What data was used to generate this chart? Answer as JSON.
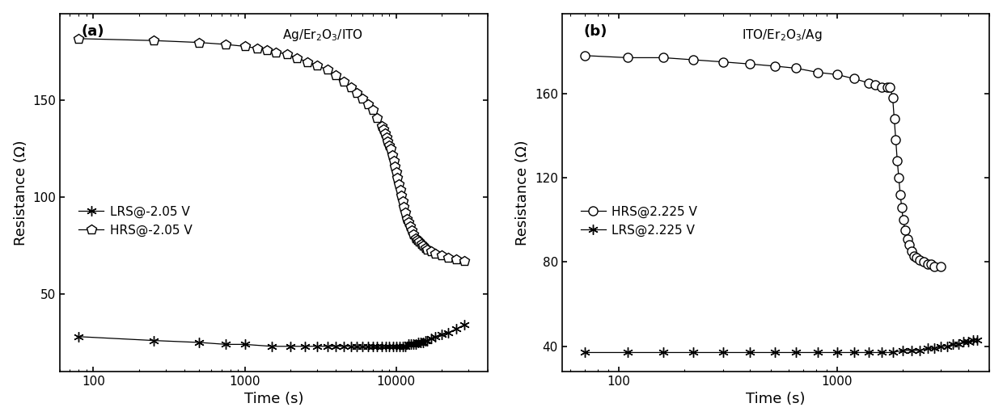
{
  "panel_a": {
    "xlabel": "Time (s)",
    "ylabel": "Resistance (Ω)",
    "label": "(a)",
    "title_text": "Ag/Er$_2$O$_3$/ITO",
    "xlim": [
      60,
      40000
    ],
    "ylim": [
      10,
      195
    ],
    "yticks": [
      50,
      100,
      150
    ],
    "xticks": [
      100,
      1000,
      10000
    ],
    "xtick_labels": [
      "100",
      "1000",
      "10000"
    ],
    "legend": [
      "LRS@-2.05 V",
      "HRS@-2.05 V"
    ],
    "HRS_time": [
      80,
      250,
      500,
      750,
      1000,
      1200,
      1400,
      1600,
      1900,
      2200,
      2600,
      3000,
      3500,
      4000,
      4500,
      5000,
      5500,
      6000,
      6500,
      7000,
      7500,
      8000,
      8200,
      8400,
      8600,
      8800,
      9000,
      9200,
      9400,
      9600,
      9800,
      10000,
      10200,
      10400,
      10600,
      10800,
      11000,
      11200,
      11500,
      11800,
      12000,
      12300,
      12600,
      13000,
      13400,
      13800,
      14200,
      14600,
      15000,
      15500,
      16000,
      17000,
      18000,
      20000,
      22000,
      25000,
      28000
    ],
    "HRS_resistance": [
      182,
      181,
      180,
      179,
      178,
      177,
      176,
      175,
      174,
      172,
      170,
      168,
      166,
      163,
      160,
      157,
      154,
      151,
      148,
      145,
      141,
      137,
      135,
      133,
      131,
      129,
      127,
      125,
      122,
      119,
      116,
      113,
      110,
      107,
      104,
      101,
      98,
      95,
      92,
      89,
      87,
      85,
      83,
      81,
      79,
      78,
      77,
      76,
      75,
      74,
      73,
      72,
      71,
      70,
      69,
      68,
      67
    ],
    "LRS_time": [
      80,
      250,
      500,
      750,
      1000,
      1500,
      2000,
      2500,
      3000,
      3500,
      4000,
      4500,
      5000,
      5500,
      6000,
      6500,
      7000,
      7500,
      8000,
      8500,
      9000,
      9500,
      10000,
      10500,
      11000,
      11500,
      12000,
      12500,
      13000,
      13500,
      14000,
      14500,
      15000,
      15500,
      16000,
      17000,
      18000,
      20000,
      22000,
      25000,
      28000
    ],
    "LRS_resistance": [
      28,
      26,
      25,
      24,
      24,
      23,
      23,
      23,
      23,
      23,
      23,
      23,
      23,
      23,
      23,
      23,
      23,
      23,
      23,
      23,
      23,
      23,
      23,
      23,
      23,
      23,
      24,
      24,
      24,
      24,
      25,
      25,
      25,
      26,
      26,
      27,
      28,
      29,
      30,
      32,
      34
    ]
  },
  "panel_b": {
    "xlabel": "Time (s)",
    "ylabel": "Resistance (Ω)",
    "label": "(b)",
    "title_text": "ITO/Er$_2$O$_3$/Ag",
    "xlim": [
      55,
      5000
    ],
    "ylim": [
      28,
      198
    ],
    "yticks": [
      40,
      80,
      120,
      160
    ],
    "xticks": [
      100,
      1000
    ],
    "xtick_labels": [
      "100",
      "1000"
    ],
    "legend": [
      "HRS@2.225 V",
      "LRS@2.225 V"
    ],
    "HRS_time": [
      70,
      110,
      160,
      220,
      300,
      400,
      520,
      650,
      820,
      1000,
      1200,
      1400,
      1500,
      1600,
      1700,
      1750,
      1800,
      1830,
      1860,
      1890,
      1920,
      1950,
      1980,
      2010,
      2050,
      2100,
      2150,
      2200,
      2260,
      2320,
      2400,
      2500,
      2600,
      2700,
      2800,
      3000
    ],
    "HRS_resistance": [
      178,
      177,
      177,
      176,
      175,
      174,
      173,
      172,
      170,
      169,
      167,
      165,
      164,
      163,
      163,
      163,
      158,
      148,
      138,
      128,
      120,
      112,
      106,
      100,
      95,
      91,
      88,
      85,
      83,
      82,
      81,
      80,
      79,
      79,
      78,
      78
    ],
    "LRS_time": [
      70,
      110,
      160,
      220,
      300,
      400,
      520,
      650,
      820,
      1000,
      1200,
      1400,
      1600,
      1800,
      2000,
      2200,
      2400,
      2600,
      2800,
      3000,
      3200,
      3400,
      3600,
      3800,
      4000,
      4200,
      4400
    ],
    "LRS_resistance": [
      37,
      37,
      37,
      37,
      37,
      37,
      37,
      37,
      37,
      37,
      37,
      37,
      37,
      37,
      38,
      38,
      38,
      39,
      39,
      40,
      40,
      41,
      41,
      42,
      42,
      43,
      43
    ]
  }
}
